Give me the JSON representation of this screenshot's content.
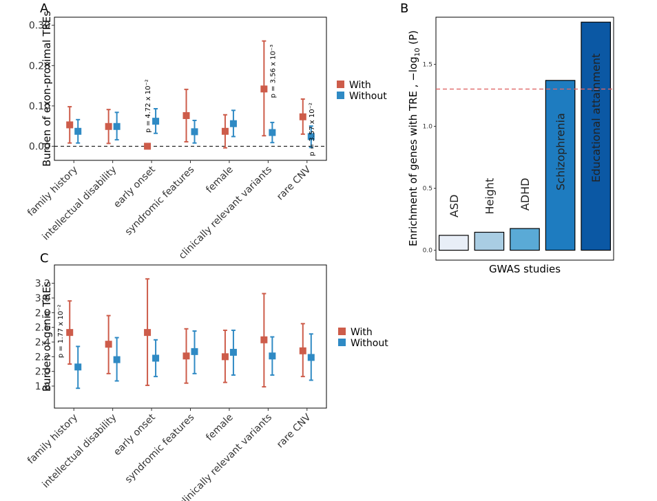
{
  "colors": {
    "with": "#CD5C4A",
    "without": "#2F8AC4"
  },
  "chart_data": [
    {
      "panel": "A",
      "type": "scatter",
      "ylabel": "Burden of exon-proximal TREs",
      "ylim": [
        -0.035,
        0.32
      ],
      "yticks": [
        "0.00",
        "0.10",
        "0.20",
        "0.30"
      ],
      "ytick_values": [
        0.0,
        0.1,
        0.2,
        0.3
      ],
      "yticks_minor": [
        "0.05",
        "0.15",
        "0.25"
      ],
      "hline": 0,
      "categories": [
        "family history",
        "intellectual disability",
        "early onset",
        "syndromic features",
        "female",
        "clinically relevant variants",
        "rare CNV"
      ],
      "series": [
        {
          "name": "With",
          "values": [
            0.053,
            0.049,
            0.0,
            0.076,
            0.037,
            0.142,
            0.073
          ],
          "lower": [
            0.008,
            0.007,
            0.0,
            0.011,
            -0.004,
            0.026,
            0.03
          ],
          "upper": [
            0.098,
            0.091,
            0.0,
            0.141,
            0.078,
            0.261,
            0.117
          ]
        },
        {
          "name": "Without",
          "values": [
            0.037,
            0.049,
            0.062,
            0.036,
            0.056,
            0.034,
            0.024
          ],
          "lower": [
            0.008,
            0.016,
            0.032,
            0.008,
            0.024,
            0.009,
            -0.003
          ],
          "upper": [
            0.066,
            0.084,
            0.093,
            0.064,
            0.089,
            0.059,
            0.05
          ]
        }
      ],
      "annotations": [
        {
          "category": "early onset",
          "text": "p = 4.72 x 10⁻²"
        },
        {
          "category": "clinically relevant variants",
          "text": "p = 3.56 x 10⁻³"
        },
        {
          "category": "rare CNV",
          "text": "p = 3.57 x 10⁻²"
        }
      ],
      "legend": [
        "With",
        "Without"
      ]
    },
    {
      "panel": "B",
      "type": "bar",
      "title": "",
      "xlabel": "GWAS studies",
      "ylabel": "Enrichment of genes with TRE , −log10 (P)",
      "ylim": [
        -0.08,
        1.88
      ],
      "yticks": [
        "0.0",
        "0.5",
        "1.0",
        "1.5"
      ],
      "ytick_values": [
        0.0,
        0.5,
        1.0,
        1.5
      ],
      "threshold": 1.3,
      "categories": [
        "ASD",
        "Height",
        "ADHD",
        "Schizophrenia",
        "Educational attainment"
      ],
      "values": [
        0.12,
        0.145,
        0.175,
        1.37,
        1.84
      ],
      "bar_colors": [
        "#E8EEF7",
        "#A9CDE3",
        "#5AAAD6",
        "#1E7CC0",
        "#0B58A4"
      ],
      "label_color": [
        "#000000",
        "#000000",
        "#000000",
        "#ffffff",
        "#ffffff"
      ]
    },
    {
      "panel": "C",
      "type": "scatter",
      "ylabel": "Burden of genic TREs",
      "ylim": [
        1.5,
        3.45
      ],
      "yticks": [
        "1.8",
        "2.0",
        "2.2",
        "2.4",
        "2.6",
        "2.8",
        "3.0",
        "3.2"
      ],
      "ytick_values": [
        1.8,
        2.0,
        2.2,
        2.4,
        2.6,
        2.8,
        3.0,
        3.2
      ],
      "categories": [
        "family history",
        "intellectual disability",
        "early onset",
        "syndromic features",
        "female",
        "clinically relevant variants",
        "rare CNV"
      ],
      "series": [
        {
          "name": "With",
          "values": [
            2.53,
            2.37,
            2.53,
            2.21,
            2.2,
            2.43,
            2.28
          ],
          "lower": [
            2.1,
            1.97,
            1.81,
            1.84,
            1.85,
            1.79,
            1.93
          ],
          "upper": [
            2.96,
            2.76,
            3.26,
            2.58,
            2.56,
            3.06,
            2.65
          ]
        },
        {
          "name": "Without",
          "values": [
            2.06,
            2.16,
            2.18,
            2.27,
            2.26,
            2.21,
            2.19
          ],
          "lower": [
            1.77,
            1.87,
            1.93,
            1.97,
            1.95,
            1.95,
            1.88
          ],
          "upper": [
            2.34,
            2.46,
            2.43,
            2.55,
            2.56,
            2.47,
            2.51
          ]
        }
      ],
      "annotations": [
        {
          "category": "family history",
          "text": "p = 1.77 x 10⁻²"
        }
      ],
      "legend": [
        "With",
        "Without"
      ]
    }
  ]
}
